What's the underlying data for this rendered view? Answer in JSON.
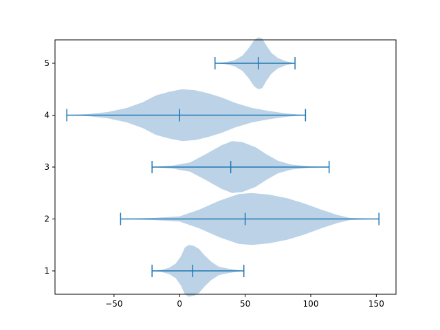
{
  "chart_data": {
    "type": "violin",
    "orientation": "horizontal",
    "title": "",
    "xlabel": "",
    "ylabel": "",
    "xlim": [
      -95,
      165
    ],
    "ylim": [
      0.55,
      5.45
    ],
    "x_ticks": [
      -50,
      0,
      50,
      100,
      150
    ],
    "x_tick_labels": [
      "−50",
      "0",
      "50",
      "100",
      "150"
    ],
    "y_ticks": [
      1,
      2,
      3,
      4,
      5
    ],
    "y_tick_labels": [
      "1",
      "2",
      "3",
      "4",
      "5"
    ],
    "grid": false,
    "colors": {
      "body": "#a6c4df",
      "stats": "#1f77b4"
    },
    "violins": [
      {
        "position": 1,
        "min": -21,
        "median": 10,
        "max": 49,
        "profile": [
          [
            -21,
            0.0
          ],
          [
            -14,
            0.02
          ],
          [
            -8,
            0.06
          ],
          [
            -3,
            0.14
          ],
          [
            1,
            0.28
          ],
          [
            4,
            0.45
          ],
          [
            7,
            0.5
          ],
          [
            11,
            0.48
          ],
          [
            15,
            0.42
          ],
          [
            19,
            0.3
          ],
          [
            24,
            0.18
          ],
          [
            30,
            0.08
          ],
          [
            38,
            0.04
          ],
          [
            49,
            0.0
          ]
        ]
      },
      {
        "position": 2,
        "min": -45,
        "median": 50,
        "max": 152,
        "profile": [
          [
            -45,
            0.0
          ],
          [
            -20,
            0.02
          ],
          [
            0,
            0.05
          ],
          [
            15,
            0.18
          ],
          [
            30,
            0.35
          ],
          [
            45,
            0.48
          ],
          [
            55,
            0.5
          ],
          [
            68,
            0.47
          ],
          [
            82,
            0.4
          ],
          [
            95,
            0.3
          ],
          [
            108,
            0.18
          ],
          [
            120,
            0.08
          ],
          [
            130,
            0.02
          ],
          [
            152,
            0.0
          ]
        ]
      },
      {
        "position": 3,
        "min": -21,
        "median": 39,
        "max": 114,
        "profile": [
          [
            -21,
            0.0
          ],
          [
            -5,
            0.03
          ],
          [
            8,
            0.09
          ],
          [
            20,
            0.25
          ],
          [
            32,
            0.42
          ],
          [
            40,
            0.5
          ],
          [
            48,
            0.48
          ],
          [
            58,
            0.38
          ],
          [
            66,
            0.25
          ],
          [
            75,
            0.12
          ],
          [
            85,
            0.05
          ],
          [
            100,
            0.01
          ],
          [
            114,
            0.0
          ]
        ]
      },
      {
        "position": 4,
        "min": -86,
        "median": 0,
        "max": 96,
        "profile": [
          [
            -86,
            0.0
          ],
          [
            -70,
            0.02
          ],
          [
            -55,
            0.06
          ],
          [
            -40,
            0.14
          ],
          [
            -28,
            0.25
          ],
          [
            -18,
            0.38
          ],
          [
            -8,
            0.45
          ],
          [
            2,
            0.5
          ],
          [
            12,
            0.48
          ],
          [
            22,
            0.42
          ],
          [
            32,
            0.34
          ],
          [
            42,
            0.24
          ],
          [
            55,
            0.14
          ],
          [
            68,
            0.08
          ],
          [
            82,
            0.03
          ],
          [
            96,
            0.0
          ]
        ]
      },
      {
        "position": 5,
        "min": 27,
        "median": 60,
        "max": 88,
        "profile": [
          [
            27,
            0.0
          ],
          [
            35,
            0.02
          ],
          [
            42,
            0.06
          ],
          [
            48,
            0.15
          ],
          [
            53,
            0.3
          ],
          [
            57,
            0.45
          ],
          [
            60,
            0.5
          ],
          [
            63,
            0.48
          ],
          [
            66,
            0.35
          ],
          [
            70,
            0.2
          ],
          [
            75,
            0.1
          ],
          [
            81,
            0.04
          ],
          [
            88,
            0.0
          ]
        ]
      }
    ]
  }
}
